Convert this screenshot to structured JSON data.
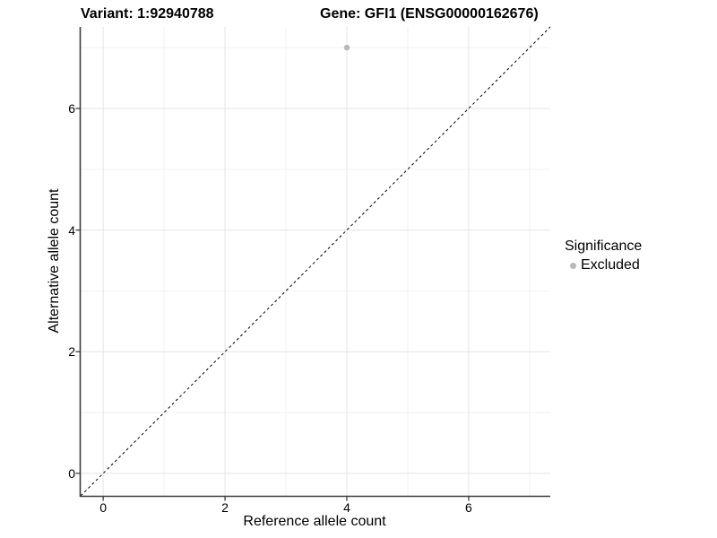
{
  "header": {
    "title_left": "Variant: 1:92940788",
    "title_right": "Gene: GFI1 (ENSG00000162676)"
  },
  "chart_data": {
    "type": "scatter",
    "title": "Variant: 1:92940788    Gene: GFI1 (ENSG00000162676)",
    "xlabel": "Reference allele count",
    "ylabel": "Alternative allele count",
    "xlim": [
      -0.37,
      7.34
    ],
    "ylim": [
      -0.37,
      7.34
    ],
    "x_major_ticks": [
      0,
      2,
      4,
      6
    ],
    "y_major_ticks": [
      0,
      2,
      4,
      6
    ],
    "x_minor_gridlines": [
      1,
      3,
      5,
      7
    ],
    "y_minor_gridlines": [
      1,
      3,
      5,
      7
    ],
    "grid": true,
    "points": [
      {
        "x": 4,
        "y": 7,
        "series": "Excluded"
      }
    ],
    "reference_line": {
      "slope": 1,
      "intercept": 0,
      "linestyle": "dashed"
    },
    "legend": {
      "title": "Significance",
      "position": "right",
      "items": [
        {
          "label": "Excluded",
          "marker": "circle",
          "color": "#b9b9b9"
        }
      ]
    },
    "colors": {
      "background": "#ffffff",
      "point": "#b9b9b9",
      "grid_major": "#e5e5e5",
      "grid_minor": "#f2f2f2",
      "axis_line": "#3c3c3c",
      "reference_line": "#000000",
      "text": "#000000"
    }
  }
}
